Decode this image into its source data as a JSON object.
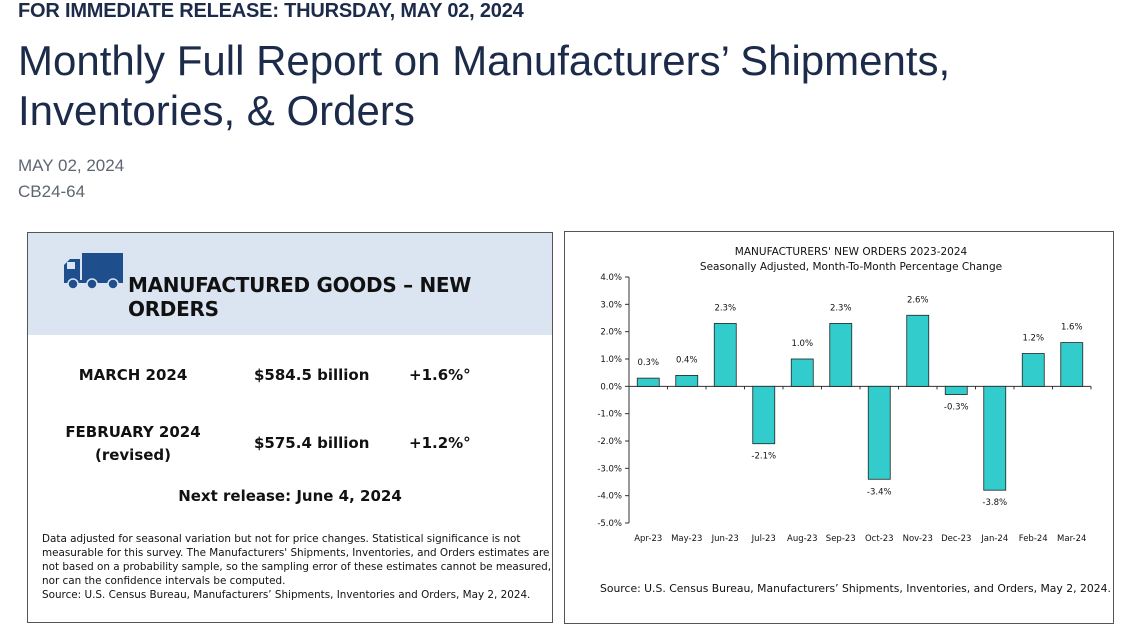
{
  "header": {
    "release_line": "FOR IMMEDIATE RELEASE: THURSDAY, MAY 02, 2024",
    "title": "Monthly Full Report on Manufacturers’ Shipments, Inventories, & Orders",
    "date": "MAY 02, 2024",
    "release_id": "CB24-64"
  },
  "summary": {
    "title": "MANUFACTURED GOODS – NEW ORDERS",
    "rows": [
      {
        "label": "MARCH 2024",
        "value": "$584.5 billion",
        "change": "+1.6%°"
      },
      {
        "label": "FEBRUARY 2024",
        "sublabel": "(revised)",
        "value": "$575.4 billion",
        "change": "+1.2%°"
      }
    ],
    "next_release": "Next release: June 4, 2024",
    "note_lines": [
      "Data adjusted for seasonal variation but not for price changes. Statistical significance is not",
      "measurable for this survey.  The Manufacturers' Shipments, Inventories, and Orders estimates are",
      "not based on a probability sample, so the sampling error of these estimates cannot be measured,",
      "nor can the confidence intervals be computed.",
      "Source: U.S. Census Bureau, Manufacturers’ Shipments, Inventories and Orders, May 2, 2024."
    ],
    "header_bg": "#dbe5f1",
    "truck_color": "#1f4e8c"
  },
  "chart_data": {
    "type": "bar",
    "title": "MANUFACTURERS' NEW ORDERS 2023-2024",
    "subtitle": "Seasonally Adjusted,  Month-To-Month Percentage Change",
    "categories": [
      "Apr-23",
      "May-23",
      "Jun-23",
      "Jul-23",
      "Aug-23",
      "Sep-23",
      "Oct-23",
      "Nov-23",
      "Dec-23",
      "Jan-24",
      "Feb-24",
      "Mar-24"
    ],
    "values": [
      0.3,
      0.4,
      2.3,
      -2.1,
      1.0,
      2.3,
      -3.4,
      2.6,
      -0.3,
      -3.8,
      1.2,
      1.6
    ],
    "data_labels": [
      "0.3%",
      "0.4%",
      "2.3%",
      "-2.1%",
      "1.0%",
      "2.3%",
      "-3.4%",
      "2.6%",
      "-0.3%",
      "-3.8%",
      "1.2%",
      "1.6%"
    ],
    "ylim": [
      -5,
      4
    ],
    "yticks": [
      "4.0%",
      "3.0%",
      "2.0%",
      "1.0%",
      "0.0%",
      "-1.0%",
      "-2.0%",
      "-3.0%",
      "-4.0%",
      "-5.0%"
    ],
    "ytick_values": [
      4,
      3,
      2,
      1,
      0,
      -1,
      -2,
      -3,
      -4,
      -5
    ],
    "xlabel": "",
    "ylabel": "",
    "grid": false,
    "bar_color": "#33cccc",
    "source": "Source: U.S. Census Bureau, Manufacturers’ Shipments, Inventories, and Orders, May 2, 2024."
  }
}
